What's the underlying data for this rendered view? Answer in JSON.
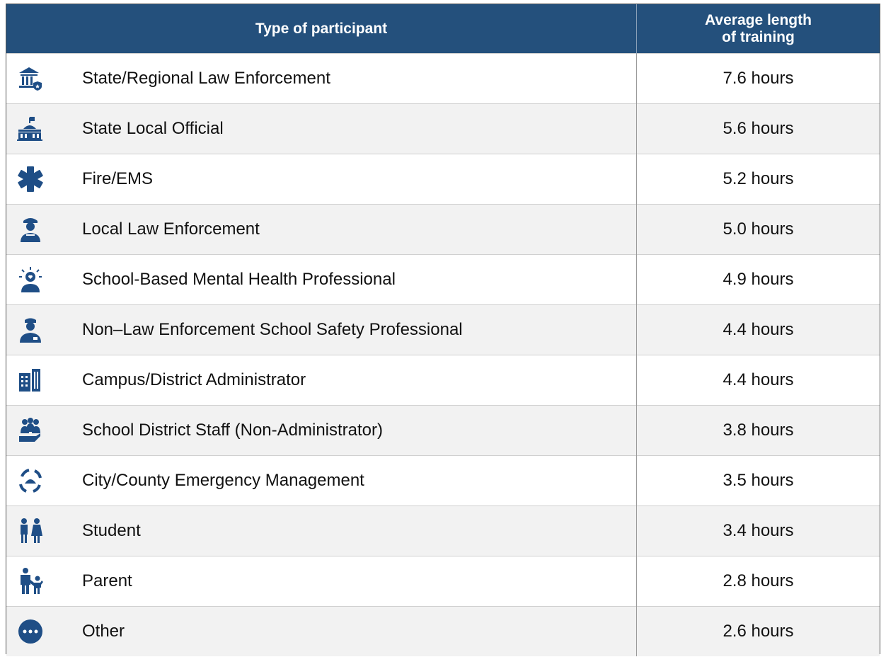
{
  "table": {
    "header": [
      "Type of participant",
      "Average length of training"
    ],
    "rows": [
      [
        "State/Regional Law Enforcement",
        "7.6 hours"
      ],
      [
        "State Local Official",
        "5.6 hours"
      ],
      [
        "Fire/EMS",
        "5.2 hours"
      ],
      [
        "Local Law Enforcement",
        "5.0 hours"
      ],
      [
        "School-Based Mental Health Professional",
        "4.9 hours"
      ],
      [
        "Non–Law Enforcement School Safety Professional",
        "4.4 hours"
      ],
      [
        "Campus/District Administrator",
        "4.4 hours"
      ],
      [
        "School District Staff (Non-Administrator)",
        "3.8 hours"
      ],
      [
        "City/County Emergency Management",
        "3.5 hours"
      ],
      [
        "Student",
        "3.4 hours"
      ],
      [
        "Parent",
        "2.8 hours"
      ],
      [
        "Other",
        "2.6 hours"
      ]
    ]
  }
}
